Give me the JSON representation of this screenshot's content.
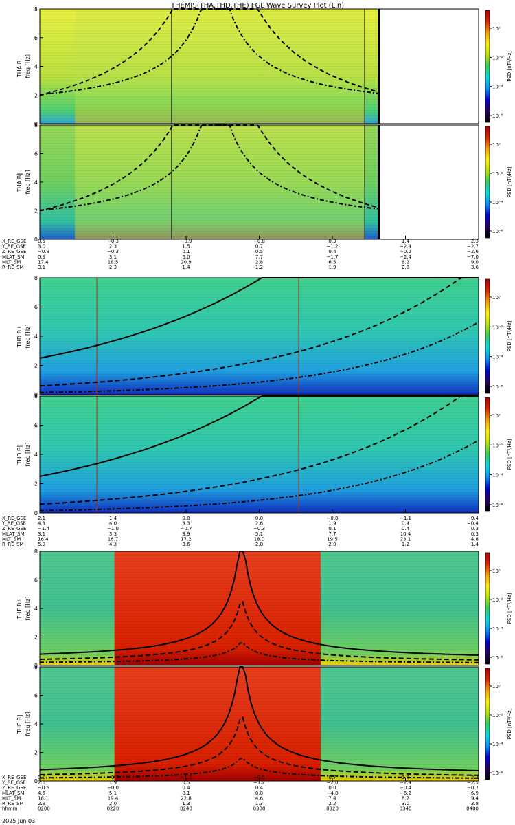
{
  "page": {
    "title": "THEMIS(THA,THD,THE) FGL Wave Survey Plot (Lin)",
    "date": "2025 Jun 03"
  },
  "colors": {
    "background": "#ffffff",
    "axes": "#000000",
    "colorbar_stops": [
      "#000000",
      "#2a0060",
      "#0000d8",
      "#0090ff",
      "#00e0e0",
      "#30d060",
      "#b8e000",
      "#f8f000",
      "#f8a000",
      "#e02000",
      "#b00000"
    ]
  },
  "chart_data": {
    "type": "heatmap",
    "title": "THEMIS(THA,THD,THE) FGL Wave Survey Plot (Lin)",
    "x": {
      "start": "02:00",
      "end": "04:00",
      "ticks": [
        "0200",
        "0220",
        "0240",
        "0300",
        "0320",
        "0340",
        "0400"
      ]
    },
    "colorbar": {
      "label": "PSD [nT²/Hz]",
      "tick_labels": [
        "10⁰",
        "10⁻²",
        "10⁻⁴",
        "10⁻⁶"
      ],
      "log": true
    },
    "panels": [
      {
        "probe": "THA",
        "component": "B⊥",
        "ylabel_probe": "THA B⊥",
        "ylabel": "freq [Hz]",
        "ylim": [
          0,
          8
        ],
        "yticks": [
          "0",
          "2",
          "4",
          "6",
          "8"
        ],
        "background": "green-yellow",
        "data_end_fraction": 0.77,
        "vlines": [
          0.3,
          0.74
        ]
      },
      {
        "probe": "THA",
        "component": "B∥",
        "ylabel_probe": "THA B∥",
        "ylabel": "freq [Hz]",
        "ylim": [
          0,
          8
        ],
        "yticks": [
          "0",
          "2",
          "4",
          "6",
          "8"
        ],
        "background": "green",
        "data_end_fraction": 0.77,
        "vlines": [
          0.3,
          0.74
        ]
      },
      {
        "probe": "THD",
        "component": "B⊥",
        "ylabel_probe": "THD B⊥",
        "ylabel": "freq [Hz]",
        "ylim": [
          0,
          8
        ],
        "yticks": [
          "0",
          "2",
          "4",
          "6",
          "8"
        ],
        "background": "cyan-green",
        "data_end_fraction": 1.0,
        "vlines": [
          0.13,
          0.59
        ]
      },
      {
        "probe": "THD",
        "component": "B∥",
        "ylabel_probe": "THD B∥",
        "ylabel": "freq [Hz]",
        "ylim": [
          0,
          8
        ],
        "yticks": [
          "0",
          "2",
          "4",
          "6",
          "8"
        ],
        "background": "cyan-green",
        "data_end_fraction": 1.0,
        "vlines": [
          0.13,
          0.59
        ]
      },
      {
        "probe": "THE",
        "component": "B⊥",
        "ylabel_probe": "THE B⊥",
        "ylabel": "freq [Hz]",
        "ylim": [
          0,
          8
        ],
        "yticks": [
          "0",
          "2",
          "4",
          "6",
          "8"
        ],
        "background": "green-red",
        "data_end_fraction": 1.0,
        "red_band": [
          0.17,
          0.64
        ],
        "vlines": []
      },
      {
        "probe": "THE",
        "component": "B∥",
        "ylabel_probe": "THE B∥",
        "ylabel": "freq [Hz]",
        "ylim": [
          0,
          8
        ],
        "yticks": [
          "0",
          "2",
          "4",
          "6",
          "8"
        ],
        "background": "green-red",
        "data_end_fraction": 1.0,
        "red_band": [
          0.17,
          0.64
        ],
        "vlines": []
      }
    ],
    "orbit_tables": [
      {
        "labels": [
          "X_RE_GSE",
          "Y_RE_GSE",
          "Z_RE_GSE",
          "MLAT_SM",
          "MLT_SM",
          "R_RE_SM"
        ],
        "rows": [
          [
            "0.5",
            "−0.3",
            "−0.9",
            "−0.8",
            "0.3",
            "1.4",
            "2.3"
          ],
          [
            "3.0",
            "2.3",
            "1.5",
            "0.7",
            "−1.2",
            "−2.4",
            "−2.7"
          ],
          [
            "−0.8",
            "−0.3",
            "0.1",
            "0.5",
            "0.4",
            "−0.2",
            "−2.6"
          ],
          [
            "0.9",
            "3.1",
            "6.0",
            "7.7",
            "−1.7",
            "−2.4",
            "−7.0"
          ],
          [
            "17.4",
            "18.5",
            "20.9",
            "2.8",
            "6.5",
            "8.2",
            "9.0"
          ],
          [
            "3.1",
            "2.3",
            "1.4",
            "1.2",
            "1.9",
            "2.8",
            "3.6"
          ]
        ]
      },
      {
        "labels": [
          "X_RE_GSE",
          "Y_RE_GSE",
          "Z_RE_GSE",
          "MLAT_SM",
          "MLT_SM",
          "R_RE_SM"
        ],
        "rows": [
          [
            "2.1",
            "1.4",
            "0.8",
            "0.0",
            "−0.8",
            "−1.1",
            "−0.4"
          ],
          [
            "4.3",
            "4.0",
            "3.3",
            "2.6",
            "1.9",
            "0.4",
            "−0.4"
          ],
          [
            "−1.4",
            "−1.0",
            "−0.7",
            "−0.3",
            "0.1",
            "0.4",
            "0.3"
          ],
          [
            "3.1",
            "3.3",
            "3.9",
            "5.1",
            "7.7",
            "10.4",
            "0.3"
          ],
          [
            "16.4",
            "16.7",
            "17.2",
            "18.0",
            "19.5",
            "23.1",
            "4.8"
          ],
          [
            "5.0",
            "4.3",
            "3.6",
            "2.8",
            "2.0",
            "1.2",
            "1.4"
          ]
        ]
      },
      {
        "labels": [
          "X_RE_GSE",
          "Y_RE_GSE",
          "Z_RE_GSE",
          "MLAT_SM",
          "MLT_SM",
          "R_RE_SM",
          "hhmm"
        ],
        "rows": [
          [
            "0.0",
            "−0.7",
            "−1.1",
            "−0.5",
            "0.7",
            "1.8",
            "2.7"
          ],
          [
            "2.6",
            "1.9",
            "0.5",
            "−1.2",
            "−2.0",
            "−2.4",
            "−2.5"
          ],
          [
            "−0.5",
            "−0.0",
            "0.4",
            "0.4",
            "0.0",
            "−0.4",
            "−0.7"
          ],
          [
            "4.5",
            "5.1",
            "8.1",
            "0.8",
            "−4.8",
            "−6.2",
            "−6.9"
          ],
          [
            "18.1",
            "19.4",
            "22.8",
            "4.6",
            "7.4",
            "8.7",
            "9.4"
          ],
          [
            "2.9",
            "2.0",
            "1.3",
            "1.3",
            "2.2",
            "3.0",
            "3.8"
          ],
          [
            "0200",
            "0220",
            "0240",
            "0300",
            "0320",
            "0340",
            "0400"
          ]
        ]
      }
    ]
  }
}
